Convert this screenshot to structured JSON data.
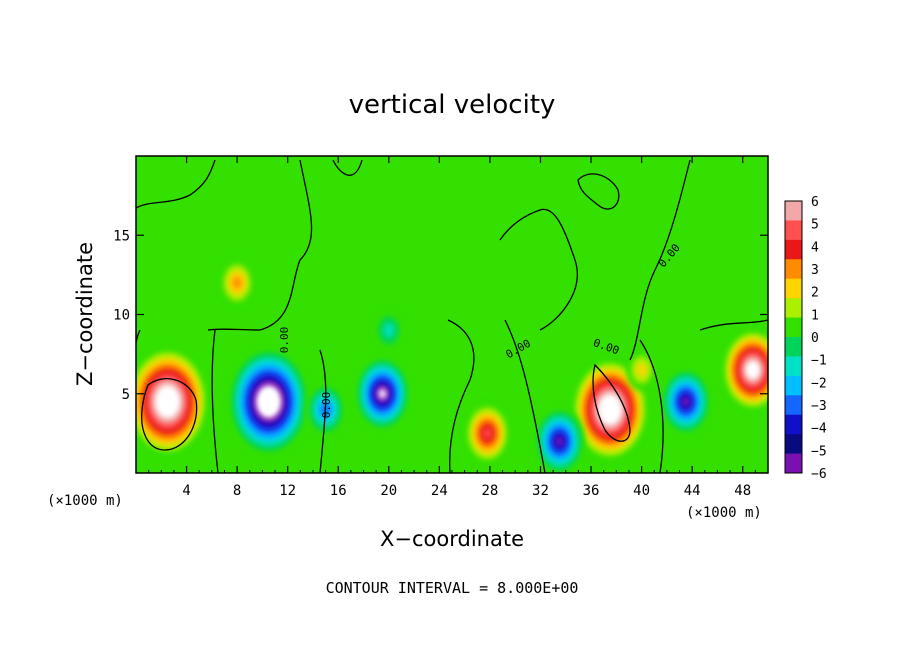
{
  "chart_data": {
    "type": "heatmap",
    "title": "vertical velocity",
    "xlabel": "X−coordinate",
    "ylabel": "Z−coordinate",
    "x_unit": "(×1000 m)",
    "y_unit": "(×1000 m)",
    "xlim": [
      0,
      50
    ],
    "ylim": [
      0,
      20
    ],
    "x_ticks": [
      4,
      8,
      12,
      16,
      20,
      24,
      28,
      32,
      36,
      40,
      44,
      48
    ],
    "y_ticks": [
      5,
      10,
      15
    ],
    "color_scale": {
      "min": -6,
      "max": 6,
      "tick_labels": [
        "6",
        "5",
        "4",
        "3",
        "2",
        "1",
        "0",
        "−1",
        "−2",
        "−3",
        "−4",
        "−5",
        "−6"
      ],
      "colors": [
        "#f2a8a8",
        "#ff5050",
        "#e81818",
        "#ff8c00",
        "#ffd400",
        "#aaf000",
        "#33e000",
        "#00d35a",
        "#00e0c4",
        "#00bfff",
        "#1565ff",
        "#1010c8",
        "#0a0a80",
        "#7a10b0"
      ]
    },
    "contour_label": "0.00",
    "contour_interval_text": "CONTOUR INTERVAL = 8.000E+00",
    "features": [
      {
        "x": 2.5,
        "z": 4.5,
        "value": 12
      },
      {
        "x": 10.5,
        "z": 4.5,
        "value": -12
      },
      {
        "x": 19.5,
        "z": 5.0,
        "value": -7
      },
      {
        "x": 37.5,
        "z": 4.0,
        "value": 11
      },
      {
        "x": 33.5,
        "z": 2.0,
        "value": -6
      },
      {
        "x": 43.5,
        "z": 4.5,
        "value": -6
      },
      {
        "x": 48.8,
        "z": 6.5,
        "value": 8
      },
      {
        "x": 8.0,
        "z": 12.0,
        "value": 3
      },
      {
        "x": 27.8,
        "z": 2.5,
        "value": 5
      },
      {
        "x": 15.0,
        "z": 4.0,
        "value": -4
      },
      {
        "x": 40.0,
        "z": 6.5,
        "value": 2
      },
      {
        "x": 20.0,
        "z": 9.0,
        "value": -2
      }
    ]
  }
}
